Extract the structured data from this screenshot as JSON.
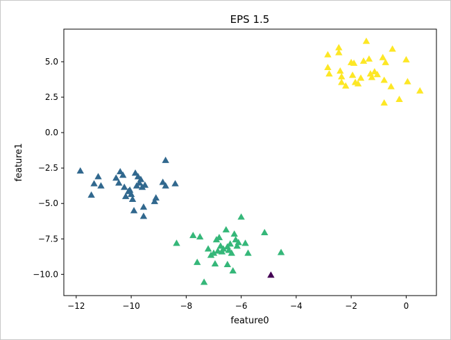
{
  "chart_data": {
    "type": "scatter",
    "title": "EPS 1.5",
    "xlabel": "feature0",
    "ylabel": "feature1",
    "xlim": [
      -12.45,
      1.1
    ],
    "ylim": [
      -11.5,
      7.3
    ],
    "grid": false,
    "legend": "none",
    "marker": "triangle",
    "xticks": [
      {
        "value": -12,
        "label": "−12"
      },
      {
        "value": -10,
        "label": "−10"
      },
      {
        "value": -8,
        "label": "−8"
      },
      {
        "value": -6,
        "label": "−6"
      },
      {
        "value": -4,
        "label": "−4"
      },
      {
        "value": -2,
        "label": "−2"
      },
      {
        "value": 0,
        "label": "0"
      }
    ],
    "yticks": [
      {
        "value": -10.0,
        "label": "−10.0"
      },
      {
        "value": -7.5,
        "label": "−7.5"
      },
      {
        "value": -5.0,
        "label": "−5.0"
      },
      {
        "value": -2.5,
        "label": "−2.5"
      },
      {
        "value": 0.0,
        "label": "0.0"
      },
      {
        "value": 2.5,
        "label": "2.5"
      },
      {
        "value": 5.0,
        "label": "5.0"
      }
    ],
    "series": [
      {
        "color": "#440154",
        "points": [
          [
            -4.92,
            -10.05
          ]
        ]
      },
      {
        "color": "#31688e",
        "points": [
          [
            -11.85,
            -2.7
          ],
          [
            -11.45,
            -4.4
          ],
          [
            -11.35,
            -3.6
          ],
          [
            -11.2,
            -3.1
          ],
          [
            -11.1,
            -3.75
          ],
          [
            -10.55,
            -3.2
          ],
          [
            -10.45,
            -3.55
          ],
          [
            -10.4,
            -2.75
          ],
          [
            -10.3,
            -3.0
          ],
          [
            -10.25,
            -3.85
          ],
          [
            -10.2,
            -4.5
          ],
          [
            -10.1,
            -4.15
          ],
          [
            -10.05,
            -4.05
          ],
          [
            -10.0,
            -4.35
          ],
          [
            -9.95,
            -4.7
          ],
          [
            -9.9,
            -5.5
          ],
          [
            -9.85,
            -2.85
          ],
          [
            -9.8,
            -3.75
          ],
          [
            -9.75,
            -3.1
          ],
          [
            -9.7,
            -3.55
          ],
          [
            -9.65,
            -3.3
          ],
          [
            -9.6,
            -3.85
          ],
          [
            -9.55,
            -5.25
          ],
          [
            -9.55,
            -5.9
          ],
          [
            -9.5,
            -3.7
          ],
          [
            -9.15,
            -4.85
          ],
          [
            -9.1,
            -4.6
          ],
          [
            -8.85,
            -3.5
          ],
          [
            -8.75,
            -3.75
          ],
          [
            -8.75,
            -1.95
          ],
          [
            -8.4,
            -3.6
          ]
        ]
      },
      {
        "color": "#35b779",
        "points": [
          [
            -8.35,
            -7.8
          ],
          [
            -7.75,
            -7.25
          ],
          [
            -7.6,
            -9.15
          ],
          [
            -7.5,
            -7.35
          ],
          [
            -7.35,
            -10.55
          ],
          [
            -7.2,
            -8.2
          ],
          [
            -7.1,
            -8.65
          ],
          [
            -7.0,
            -8.5
          ],
          [
            -6.95,
            -9.25
          ],
          [
            -6.9,
            -7.55
          ],
          [
            -6.85,
            -8.35
          ],
          [
            -6.8,
            -7.4
          ],
          [
            -6.75,
            -8.0
          ],
          [
            -6.7,
            -8.4
          ],
          [
            -6.65,
            -8.2
          ],
          [
            -6.55,
            -6.85
          ],
          [
            -6.5,
            -8.05
          ],
          [
            -6.5,
            -9.3
          ],
          [
            -6.45,
            -8.3
          ],
          [
            -6.4,
            -7.85
          ],
          [
            -6.35,
            -8.5
          ],
          [
            -6.3,
            -9.75
          ],
          [
            -6.25,
            -7.15
          ],
          [
            -6.2,
            -7.55
          ],
          [
            -6.15,
            -8.0
          ],
          [
            -6.1,
            -7.75
          ],
          [
            -6.0,
            -5.95
          ],
          [
            -5.85,
            -7.8
          ],
          [
            -5.75,
            -8.5
          ],
          [
            -5.15,
            -7.05
          ],
          [
            -4.55,
            -8.45
          ]
        ]
      },
      {
        "color": "#fde725",
        "points": [
          [
            -2.85,
            5.5
          ],
          [
            -2.85,
            4.6
          ],
          [
            -2.8,
            4.15
          ],
          [
            -2.45,
            6.0
          ],
          [
            -2.45,
            5.65
          ],
          [
            -2.4,
            4.35
          ],
          [
            -2.35,
            3.95
          ],
          [
            -2.35,
            3.55
          ],
          [
            -2.2,
            3.3
          ],
          [
            -2.0,
            4.95
          ],
          [
            -1.95,
            4.05
          ],
          [
            -1.9,
            4.9
          ],
          [
            -1.85,
            3.55
          ],
          [
            -1.75,
            3.45
          ],
          [
            -1.65,
            3.85
          ],
          [
            -1.55,
            5.05
          ],
          [
            -1.45,
            6.45
          ],
          [
            -1.35,
            5.2
          ],
          [
            -1.3,
            4.15
          ],
          [
            -1.25,
            3.9
          ],
          [
            -1.15,
            4.3
          ],
          [
            -1.05,
            4.1
          ],
          [
            -0.85,
            5.3
          ],
          [
            -0.8,
            3.7
          ],
          [
            -0.8,
            2.1
          ],
          [
            -0.75,
            4.95
          ],
          [
            -0.55,
            3.25
          ],
          [
            -0.5,
            5.9
          ],
          [
            -0.25,
            2.35
          ],
          [
            0.0,
            5.15
          ],
          [
            0.05,
            3.6
          ],
          [
            0.5,
            2.95
          ]
        ]
      }
    ]
  }
}
